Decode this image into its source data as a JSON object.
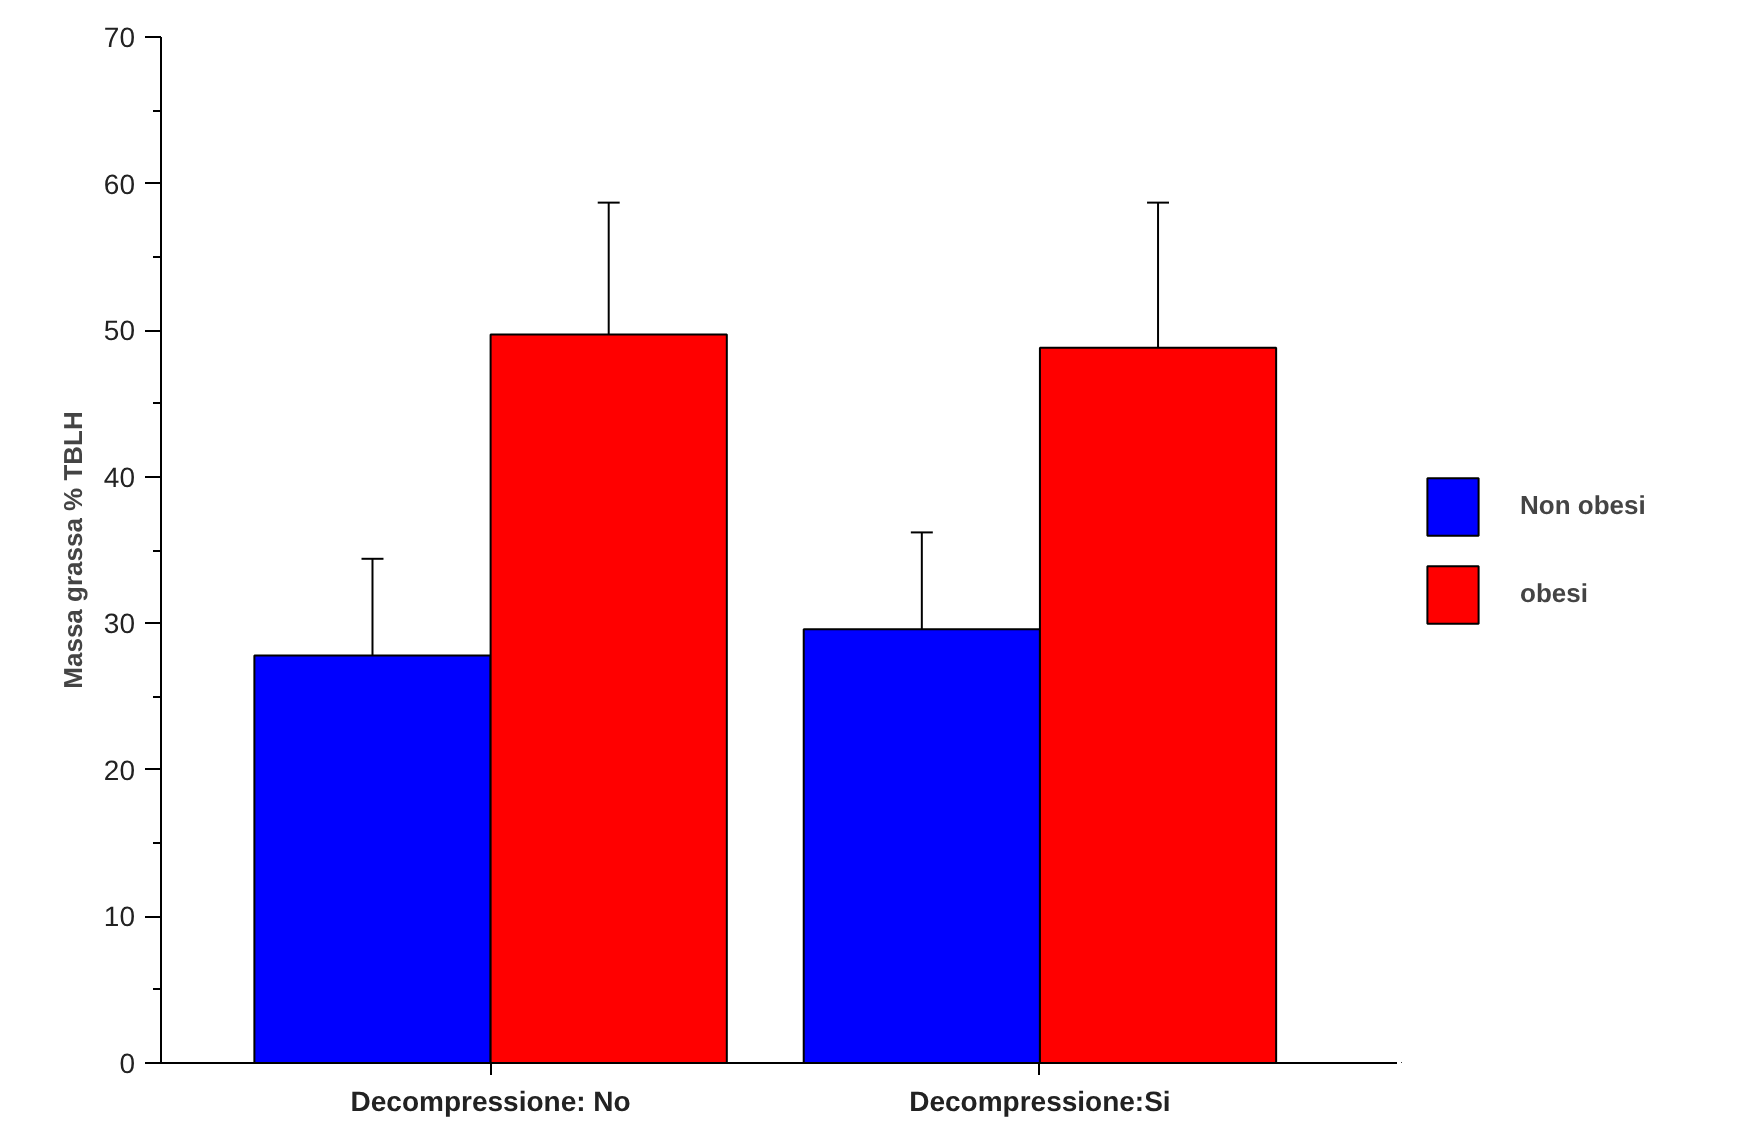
{
  "chart_data": {
    "type": "bar",
    "ylabel": "Massa grassa % TBLH",
    "categories": [
      "Decompressione: No",
      "Decompressione:Si"
    ],
    "series": [
      {
        "name": "Non obesi",
        "color": "#0000ff",
        "values": [
          27.8,
          29.6
        ],
        "errors": [
          [
            27.8,
            34.4
          ],
          [
            29.6,
            36.2
          ]
        ]
      },
      {
        "name": "obesi",
        "color": "#ff0000",
        "values": [
          49.7,
          48.8
        ],
        "errors": [
          [
            49.7,
            58.7
          ],
          [
            48.8,
            58.7
          ]
        ]
      }
    ],
    "ylim": [
      0,
      70
    ],
    "yticks": [
      0,
      10,
      20,
      30,
      40,
      50,
      60,
      70
    ],
    "grid": false,
    "legend": "right"
  }
}
